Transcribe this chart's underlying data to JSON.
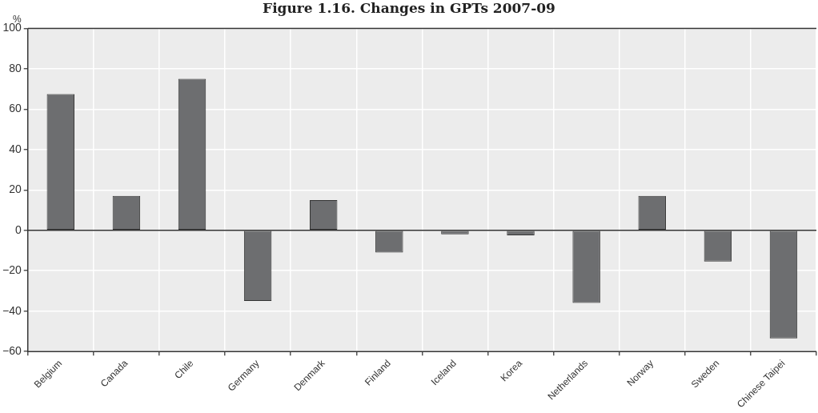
{
  "chart_data": {
    "type": "bar",
    "title": "Figure 1.16. Changes in GPTs 2007-09",
    "ylabel": "%",
    "categories": [
      "Belgium",
      "Canada",
      "Chile",
      "Germany",
      "Denmark",
      "Finland",
      "Iceland",
      "Korea",
      "Netherlands",
      "Norway",
      "Sweden",
      "Chinese Taipei"
    ],
    "values": [
      67.5,
      17,
      75,
      -35,
      15,
      -11,
      -2,
      -2.5,
      -36,
      17,
      -15.5,
      -53.5
    ],
    "color": "#6d6e70",
    "ylim": [
      -60,
      100
    ],
    "yticks": [
      -60,
      -40,
      -20,
      0,
      20,
      40,
      60,
      80,
      100
    ],
    "grid": true
  }
}
